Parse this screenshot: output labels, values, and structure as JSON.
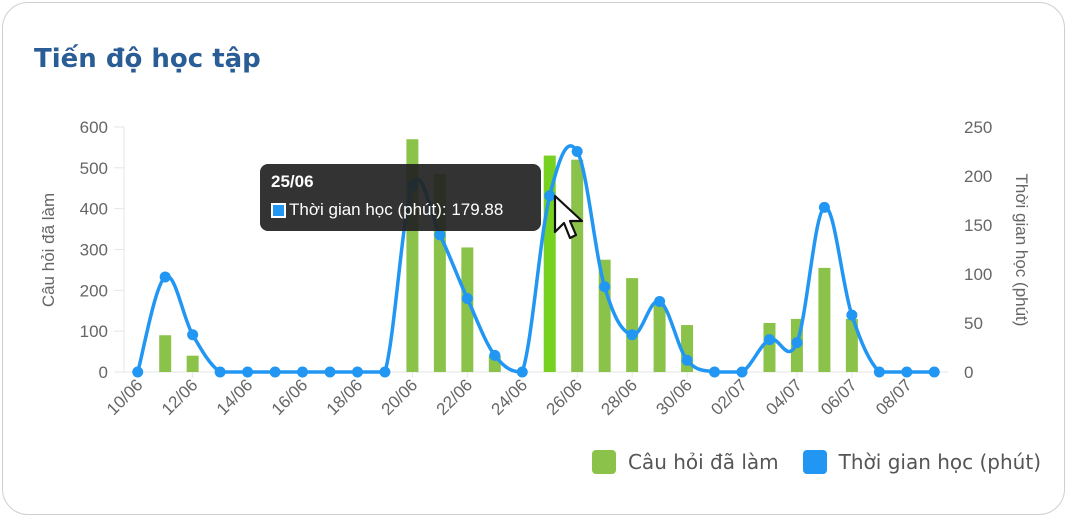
{
  "title": "Tiến độ học tập",
  "colors": {
    "bars": "#8bc34a",
    "bar_highlight": "#76d121",
    "line": "#2196f3",
    "title": "#2a5d95"
  },
  "legend": {
    "bars_label": "Câu hỏi đã làm",
    "line_label": "Thời gian học (phút)"
  },
  "tooltip": {
    "title": "25/06",
    "text": "Thời gian học (phút): 179.88"
  },
  "chart_data": {
    "type": "bar",
    "categories": [
      "10/06",
      "11/06",
      "12/06",
      "13/06",
      "14/06",
      "15/06",
      "16/06",
      "17/06",
      "18/06",
      "19/06",
      "20/06",
      "21/06",
      "22/06",
      "23/06",
      "24/06",
      "25/06",
      "26/06",
      "27/06",
      "28/06",
      "29/06",
      "30/06",
      "01/07",
      "02/07",
      "03/07",
      "04/07",
      "05/07",
      "06/07",
      "07/07",
      "08/07",
      "09/07"
    ],
    "x_tick_labels": [
      "10/06",
      "12/06",
      "14/06",
      "16/06",
      "18/06",
      "20/06",
      "22/06",
      "24/06",
      "26/06",
      "28/06",
      "30/06",
      "02/07",
      "04/07",
      "06/07",
      "08/07"
    ],
    "series": [
      {
        "name": "Câu hỏi đã làm",
        "type": "bar",
        "axis": "left",
        "values": [
          0,
          90,
          40,
          0,
          0,
          0,
          0,
          0,
          0,
          0,
          570,
          485,
          305,
          40,
          0,
          530,
          520,
          275,
          230,
          165,
          115,
          0,
          0,
          120,
          130,
          255,
          130,
          0,
          0,
          0
        ]
      },
      {
        "name": "Thời gian học (phút)",
        "type": "line",
        "axis": "right",
        "values": [
          0,
          97,
          38,
          0,
          0,
          0,
          0,
          0,
          0,
          0,
          190,
          140,
          75,
          17,
          0,
          179.88,
          225,
          87,
          38,
          72,
          12,
          0,
          0,
          33,
          30,
          168,
          58,
          0,
          0,
          0
        ]
      }
    ],
    "ylabel": "Câu hỏi đã làm",
    "y2label": "Thời gian học (phút)",
    "ylim": [
      0,
      600
    ],
    "y2lim": [
      0,
      250
    ],
    "yticks": [
      0,
      100,
      200,
      300,
      400,
      500,
      600
    ],
    "y2ticks": [
      0,
      50,
      100,
      150,
      200,
      250
    ],
    "highlight_index": 15,
    "legend_position": "bottom-right"
  }
}
